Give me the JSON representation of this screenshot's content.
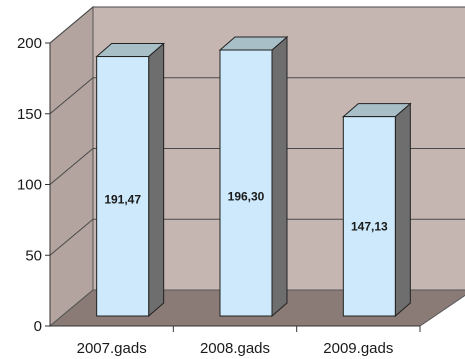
{
  "chart_data": {
    "type": "bar",
    "style": "3d-column",
    "categories": [
      "2007.gads",
      "2008.gads",
      "2009.gads"
    ],
    "values": [
      191.47,
      196.3,
      147.13
    ],
    "data_labels": [
      "191,47",
      "196,30",
      "147,13"
    ],
    "title": "",
    "xlabel": "",
    "ylabel": "",
    "ylim": [
      0,
      200
    ],
    "yticks": [
      "0",
      "50",
      "100",
      "150",
      "200"
    ],
    "grid": true,
    "legend": "none",
    "colors": {
      "bar_front": "#cde9fb",
      "bar_top": "#a9bfc8",
      "bar_side": "#6e6e6e",
      "back_wall": "#c5b6b1",
      "side_wall": "#b3a49f",
      "floor": "#8a7b76",
      "gridline": "#4a4a4a"
    }
  }
}
